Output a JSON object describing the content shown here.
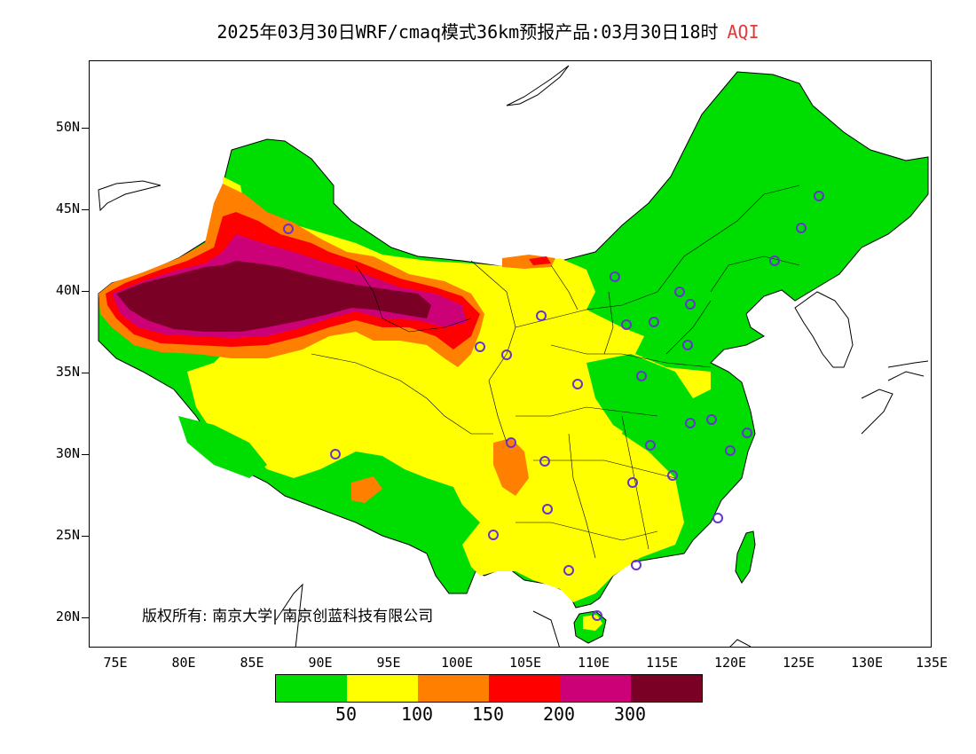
{
  "title": {
    "main": "2025年03月30日WRF/cmaq模式36km预报产品:03月30日18时",
    "variable": "AQI",
    "variable_color": "#e03a3a"
  },
  "axes": {
    "latitude_ticks": [
      "50N",
      "45N",
      "40N",
      "35N",
      "30N",
      "25N",
      "20N"
    ],
    "longitude_ticks": [
      "75E",
      "80E",
      "85E",
      "90E",
      "95E",
      "100E",
      "105E",
      "110E",
      "115E",
      "120E",
      "125E",
      "130E",
      "135E"
    ]
  },
  "copyright": "版权所有: 南京大学| 南京创蓝科技有限公司",
  "legend": {
    "colors": [
      "#00dd00",
      "#ffff00",
      "#ff8000",
      "#ff0000",
      "#cc0077",
      "#7a0025"
    ],
    "labels": [
      "50",
      "100",
      "150",
      "200",
      "300"
    ]
  },
  "stations": {
    "marker_color": "#6633cc"
  }
}
